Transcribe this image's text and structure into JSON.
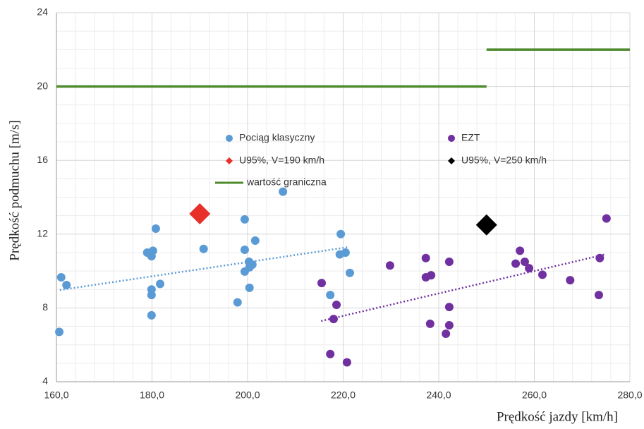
{
  "chart_data": {
    "type": "scatter",
    "xlabel": "Prędkość jazdy [km/h]",
    "ylabel": "Prędkość podmuchu [m/s]",
    "xlim": [
      160,
      280
    ],
    "ylim": [
      4,
      24
    ],
    "xticks": [
      {
        "value": 160,
        "label": "160,0"
      },
      {
        "value": 180,
        "label": "180,0"
      },
      {
        "value": 200,
        "label": "200,0"
      },
      {
        "value": 220,
        "label": "220,0"
      },
      {
        "value": 240,
        "label": "240,0"
      },
      {
        "value": 260,
        "label": "260,0"
      },
      {
        "value": 280,
        "label": "280,0"
      }
    ],
    "yticks": [
      4,
      8,
      12,
      16,
      20,
      24
    ],
    "xminorticks": [
      164,
      168,
      172,
      176,
      184,
      188,
      192,
      196,
      204,
      208,
      212,
      216,
      224,
      228,
      232,
      236,
      244,
      248,
      252,
      256,
      264,
      268,
      272,
      276
    ],
    "yminorticks": [
      5,
      6,
      7,
      9,
      10,
      11,
      13,
      14,
      15,
      17,
      18,
      19,
      21,
      22,
      23
    ],
    "grid": true,
    "series": [
      {
        "name": "Pociąg klasyczny",
        "color": "#5b9bd5",
        "marker": "circle",
        "x": [
          160.6,
          161.0,
          162.1,
          179.0,
          179.9,
          180.2,
          180.8,
          179.9,
          179.9,
          181.7,
          179.9,
          190.8,
          199.4,
          199.4,
          201.6,
          200.3,
          201.0,
          200.4,
          199.4,
          200.4,
          197.9,
          207.4,
          219.5,
          219.3,
          220.5,
          221.4,
          217.3
        ],
        "values": [
          6.7,
          9.66,
          9.24,
          11.0,
          10.8,
          11.1,
          12.3,
          9.0,
          8.7,
          9.3,
          7.6,
          11.2,
          12.8,
          11.15,
          11.65,
          10.5,
          10.35,
          10.2,
          9.97,
          9.09,
          8.3,
          14.3,
          12.0,
          10.9,
          11.0,
          9.9,
          8.7
        ]
      },
      {
        "name": "EZT",
        "color": "#7030a0",
        "marker": "circle",
        "x": [
          215.5,
          217.3,
          218.6,
          218.0,
          220.8,
          229.8,
          237.3,
          237.3,
          238.4,
          238.2,
          242.2,
          242.2,
          242.2,
          241.5,
          257.0,
          256.1,
          258.0,
          258.9,
          261.7,
          267.5,
          273.7,
          273.5,
          275.1
        ],
        "values": [
          9.35,
          5.5,
          8.17,
          7.4,
          5.05,
          10.3,
          10.7,
          9.66,
          9.77,
          7.14,
          10.5,
          8.05,
          7.06,
          6.6,
          11.1,
          10.4,
          10.5,
          10.15,
          9.8,
          9.5,
          10.7,
          8.7,
          12.85
        ]
      },
      {
        "name": "U95%, V=190 km/h",
        "color": "#e8302a",
        "marker": "diamond",
        "x": [
          190
        ],
        "values": [
          13.1
        ]
      },
      {
        "name": "U95%, V=250 km/h",
        "color": "#000000",
        "marker": "diamond",
        "x": [
          250
        ],
        "values": [
          12.5
        ]
      },
      {
        "name": "wartość graniczna",
        "color": "#4e8a2e",
        "marker": "line",
        "x": [
          160,
          250,
          null,
          250,
          280
        ],
        "values": [
          20,
          20,
          null,
          22,
          22
        ]
      }
    ],
    "trendlines": [
      {
        "color": "#5b9bd5",
        "x": [
          160.7,
          221.2
        ],
        "values": [
          8.97,
          11.3
        ]
      },
      {
        "color": "#7030a0",
        "x": [
          215.4,
          274.8
        ],
        "values": [
          7.29,
          10.9
        ]
      }
    ]
  }
}
